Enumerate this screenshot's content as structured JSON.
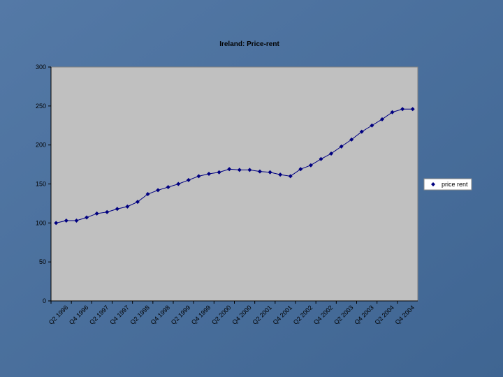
{
  "chart_data": {
    "type": "line",
    "title": "Ireland: Price-rent",
    "categories": [
      null,
      "Q2 1996",
      null,
      "Q4 1996",
      null,
      "Q2 1997",
      null,
      "Q4 1997",
      null,
      "Q2 1998",
      null,
      "Q4 1998",
      null,
      "Q2 1999",
      null,
      "Q4 1999",
      null,
      "Q2 2000",
      null,
      "Q4 2000",
      null,
      "Q2 2001",
      null,
      "Q4 2001",
      null,
      "Q2 2002",
      null,
      "Q4 2002",
      null,
      "Q2 2003",
      null,
      "Q4 2003",
      null,
      "Q2 2004",
      null,
      "Q4 2004"
    ],
    "series": [
      {
        "name": "price rent",
        "color": "#000080",
        "values": [
          100,
          103,
          103,
          107,
          112,
          114,
          118,
          121,
          127,
          137,
          142,
          146,
          150,
          155,
          160,
          163,
          165,
          169,
          168,
          168,
          166,
          165,
          162,
          160,
          169,
          174,
          182,
          189,
          198,
          207,
          217,
          225,
          233,
          242,
          246,
          246
        ]
      }
    ],
    "ylim": [
      0,
      300
    ],
    "yticks": [
      0,
      50,
      100,
      150,
      200,
      250,
      300
    ],
    "legend": "right"
  }
}
